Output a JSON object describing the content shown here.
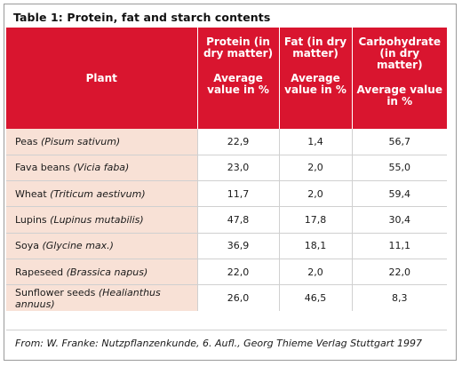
{
  "caption": "Table 1: Protein, fat and starch contents",
  "headers": {
    "plant": "Plant",
    "protein": "Protein (in dry matter)",
    "fat": "Fat (in dry matter)",
    "carb": "Carbohydrate (in dry matter)",
    "avg": "Average value in %"
  },
  "rows": [
    {
      "name": "Peas",
      "latin": "(Pisum sativum)",
      "protein": "22,9",
      "fat": "1,4",
      "carb": "56,7"
    },
    {
      "name": "Fava beans",
      "latin": "(Vicia faba)",
      "protein": "23,0",
      "fat": "2,0",
      "carb": "55,0"
    },
    {
      "name": "Wheat",
      "latin": "(Triticum aestivum)",
      "protein": "11,7",
      "fat": "2,0",
      "carb": "59,4"
    },
    {
      "name": "Lupins",
      "latin": "(Lupinus mutabilis)",
      "protein": "47,8",
      "fat": "17,8",
      "carb": "30,4"
    },
    {
      "name": "Soya",
      "latin": "(Glycine max.)",
      "protein": "36,9",
      "fat": "18,1",
      "carb": "11,1"
    },
    {
      "name": "Rapeseed",
      "latin": "(Brassica napus)",
      "protein": "22,0",
      "fat": "2,0",
      "carb": "22,0"
    },
    {
      "name": "Sunflower seeds",
      "latin": "(Healianthus annuus)",
      "protein": "26,0",
      "fat": "46,5",
      "carb": "8,3"
    }
  ],
  "footer": "From: W. Franke: Nutzpflanzenkunde, 6. Aufl., Georg Thieme Verlag Stuttgart 1997",
  "colors": {
    "header_bg": "#d9152f",
    "plant_col_bg": "#f8e1d6"
  }
}
